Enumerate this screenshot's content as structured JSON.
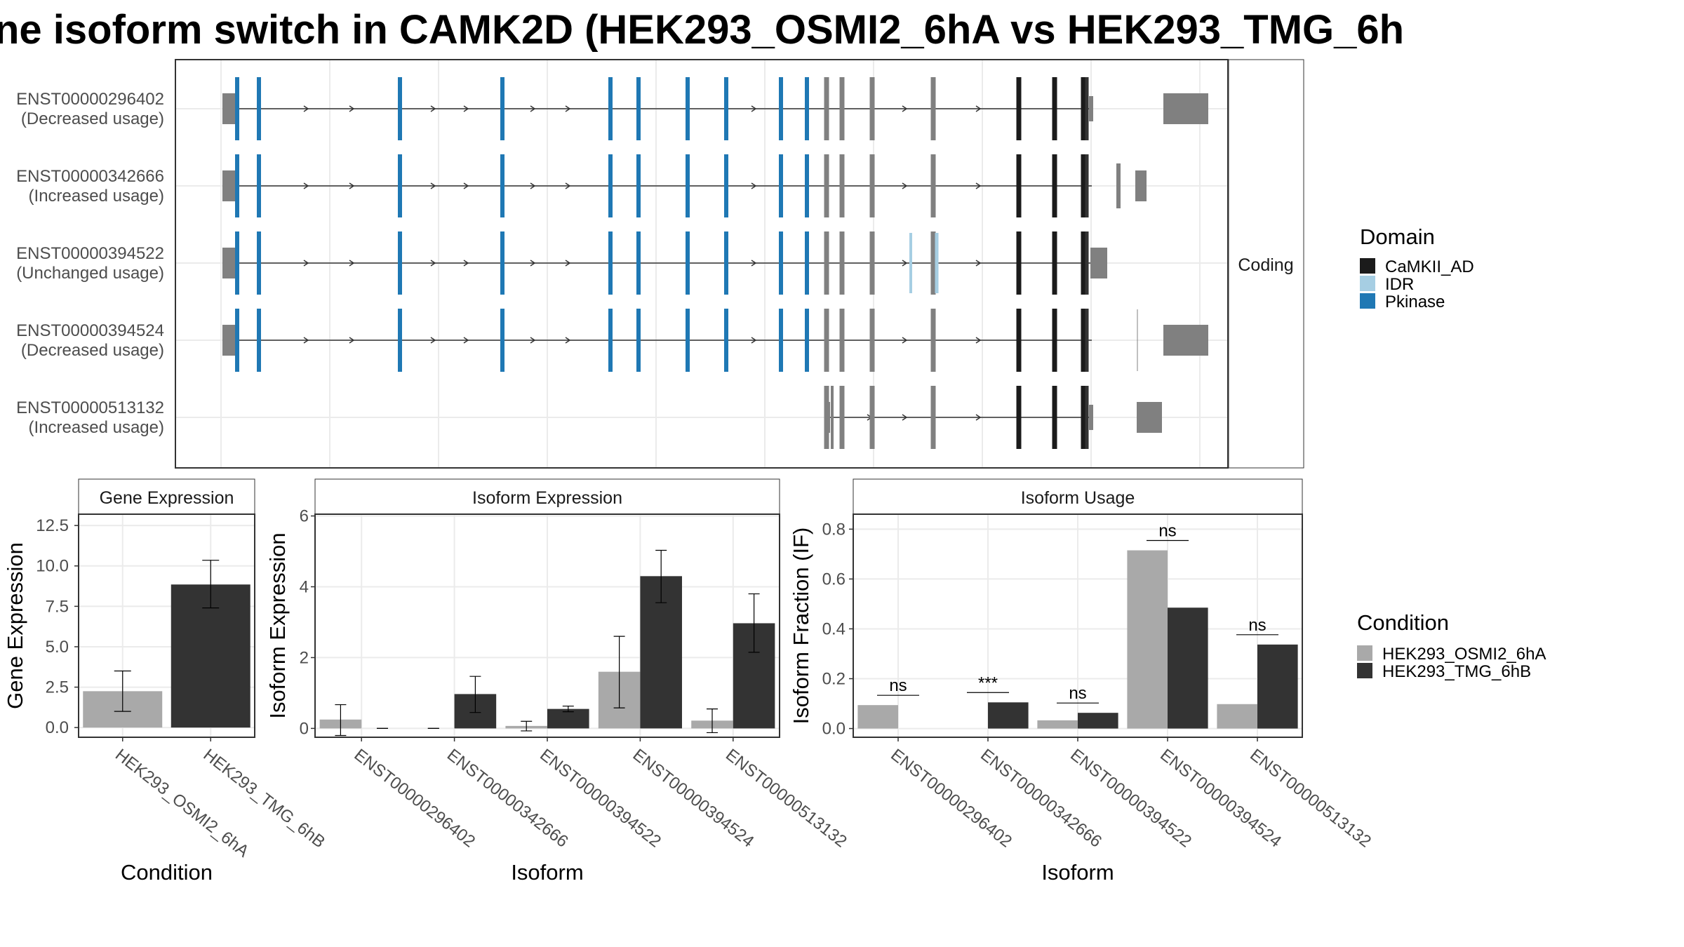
{
  "title": "ne isoform switch in CAMK2D (HEK293_OSMI2_6hA vs HEK293_TMG_6h",
  "colors": {
    "osmi": "#a9a9a9",
    "tmg": "#333333",
    "exon": "#808080",
    "CaMKII_AD": "#1b1b1b",
    "IDR": "#a6cee3",
    "Pkinase": "#1f78b4"
  },
  "chart_data": [
    {
      "type": "gene-structure",
      "strip_label": "Coding",
      "isoforms": [
        {
          "id": "ENST00000296402",
          "status": "(Decreased usage)"
        },
        {
          "id": "ENST00000342666",
          "status": "(Increased usage)"
        },
        {
          "id": "ENST00000394522",
          "status": "(Unchanged usage)"
        },
        {
          "id": "ENST00000394524",
          "status": "(Decreased usage)"
        },
        {
          "id": "ENST00000513132",
          "status": "(Increased usage)"
        }
      ],
      "legend": {
        "title": "Domain",
        "entries": [
          "CaMKII_AD",
          "IDR",
          "Pkinase"
        ]
      }
    },
    {
      "type": "bar",
      "title": "Gene Expression",
      "xlabel": "Condition",
      "ylabel": "Gene Expression",
      "categories": [
        "HEK293_OSMI2_6hA",
        "HEK293_TMG_6hB"
      ],
      "values": [
        2.25,
        8.85
      ],
      "errors": [
        [
          1.0,
          3.5
        ],
        [
          7.4,
          10.35
        ]
      ],
      "ylim": [
        -0.6,
        13.2
      ],
      "yticks": [
        "0.0",
        "2.5",
        "5.0",
        "7.5",
        "10.0",
        "12.5"
      ]
    },
    {
      "type": "bar",
      "title": "Isoform Expression",
      "xlabel": "Isoform",
      "ylabel": "Isoform Expression",
      "categories": [
        "ENST00000296402",
        "ENST00000342666",
        "ENST00000394522",
        "ENST00000394524",
        "ENST00000513132"
      ],
      "series": [
        {
          "name": "HEK293_OSMI2_6hA",
          "values": [
            0.25,
            0.0,
            0.07,
            1.6,
            0.22
          ],
          "errors": [
            [
              -0.2,
              0.67
            ],
            [
              0.0,
              0.0
            ],
            [
              -0.07,
              0.2
            ],
            [
              0.58,
              2.6
            ],
            [
              -0.12,
              0.55
            ]
          ]
        },
        {
          "name": "HEK293_TMG_6hB",
          "values": [
            0.0,
            0.97,
            0.55,
            4.3,
            2.97
          ],
          "errors": [
            [
              0.0,
              0.0
            ],
            [
              0.45,
              1.47
            ],
            [
              0.47,
              0.63
            ],
            [
              3.55,
              5.03
            ],
            [
              2.15,
              3.8
            ]
          ]
        }
      ],
      "ylim": [
        -0.25,
        6.05
      ],
      "yticks": [
        "0",
        "2",
        "4",
        "6"
      ]
    },
    {
      "type": "bar",
      "title": "Isoform Usage",
      "xlabel": "Isoform",
      "ylabel": "Isoform Fraction (IF)",
      "categories": [
        "ENST00000296402",
        "ENST00000342666",
        "ENST00000394522",
        "ENST00000394524",
        "ENST00000513132"
      ],
      "series": [
        {
          "name": "HEK293_OSMI2_6hA",
          "values": [
            0.094,
            0.0,
            0.033,
            0.715,
            0.098
          ]
        },
        {
          "name": "HEK293_TMG_6hB",
          "values": [
            0.0,
            0.105,
            0.063,
            0.485,
            0.337
          ]
        }
      ],
      "significance": [
        "ns",
        "***",
        "ns",
        "ns",
        "ns"
      ],
      "ylim": [
        -0.035,
        0.86
      ],
      "yticks": [
        "0.0",
        "0.2",
        "0.4",
        "0.6",
        "0.8"
      ]
    }
  ],
  "legend_condition": {
    "title": "Condition",
    "entries": [
      "HEK293_OSMI2_6hA",
      "HEK293_TMG_6hB"
    ]
  }
}
